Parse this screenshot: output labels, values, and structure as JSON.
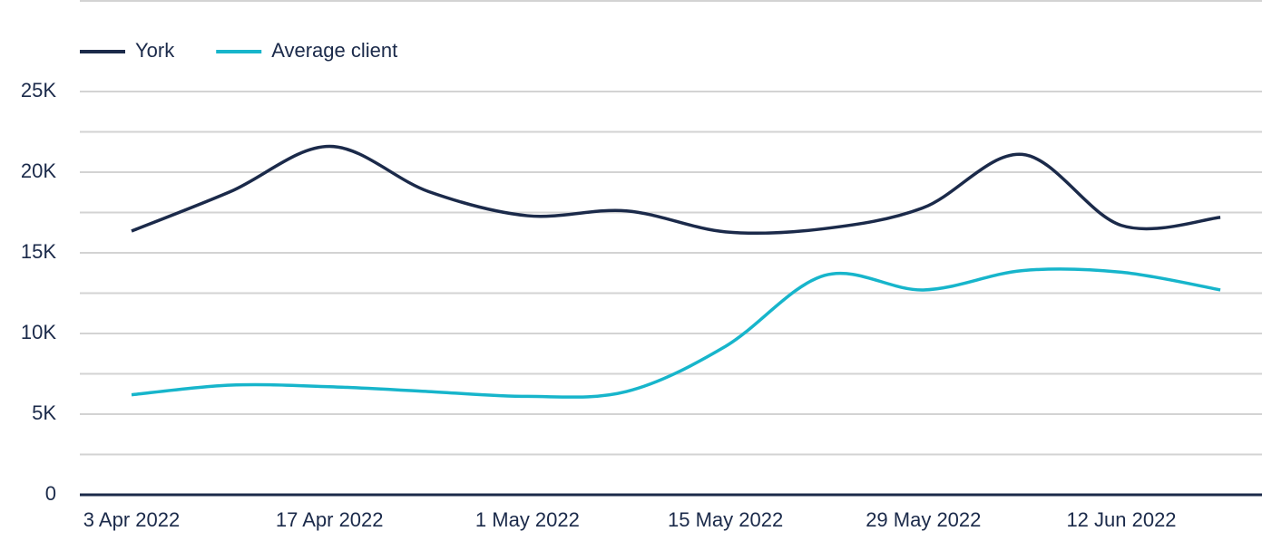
{
  "chart_data": {
    "type": "line",
    "categories": [
      "3 Apr 2022",
      null,
      "17 Apr 2022",
      null,
      "1 May 2022",
      null,
      "15 May 2022",
      null,
      "29 May 2022",
      null,
      "12 Jun 2022",
      null
    ],
    "series": [
      {
        "name": "York",
        "color": "#1b2a4a",
        "values": [
          16350,
          18800,
          21600,
          18800,
          17300,
          17600,
          16300,
          16500,
          17800,
          21100,
          16700,
          17200
        ]
      },
      {
        "name": "Average client",
        "color": "#17b5cb",
        "values": [
          6200,
          6800,
          6700,
          6400,
          6100,
          6400,
          9200,
          13600,
          12700,
          13900,
          13800,
          12700
        ]
      }
    ],
    "ylim": [
      0,
      25000
    ],
    "yticks": [
      0,
      {
        "value": 5000,
        "label": "5K"
      },
      {
        "value": 10000,
        "label": "10K"
      },
      {
        "value": 15000,
        "label": "15K"
      },
      {
        "value": 20000,
        "label": "20K"
      },
      {
        "value": 25000,
        "label": "25K"
      }
    ],
    "minor_yticks": [
      2500,
      7500,
      12500,
      17500,
      22500
    ],
    "grid": true,
    "legend": "top-left"
  }
}
